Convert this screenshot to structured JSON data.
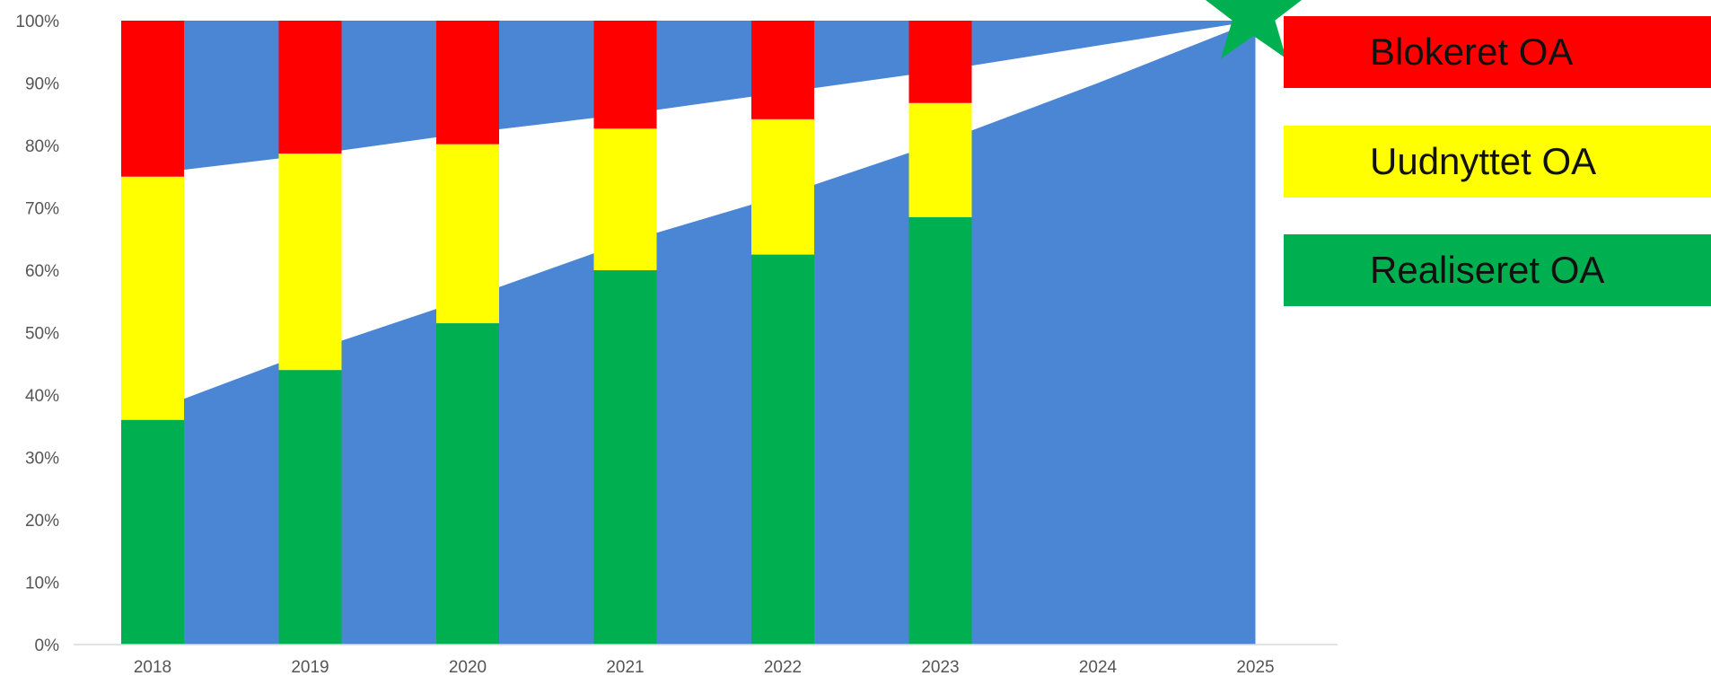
{
  "chart_data": {
    "type": "bar",
    "stacked": true,
    "categories": [
      "2018",
      "2019",
      "2020",
      "2021",
      "2022",
      "2023",
      "2024",
      "2025"
    ],
    "yticks": [
      "0%",
      "10%",
      "20%",
      "30%",
      "40%",
      "50%",
      "60%",
      "70%",
      "80%",
      "90%",
      "100%"
    ],
    "ylim": [
      0,
      100
    ],
    "series": [
      {
        "name": "Realiseret OA",
        "color": "#00b050",
        "values": [
          36,
          44,
          51.5,
          60,
          62.5,
          68.5,
          null,
          null
        ]
      },
      {
        "name": "Uudnyttet OA",
        "color": "#ffff00",
        "values": [
          39,
          34.7,
          28.7,
          22.7,
          21.7,
          18.3,
          null,
          null
        ]
      },
      {
        "name": "Blokeret OA",
        "color": "#ff0000",
        "values": [
          25,
          21.3,
          19.8,
          17.3,
          15.8,
          13.2,
          null,
          null
        ]
      }
    ],
    "trend_area": {
      "color": "#4a86d4",
      "upper_boundary": [
        75.5,
        78.5,
        82,
        85,
        88.5,
        92,
        96,
        100
      ],
      "lower_boundary": [
        37.5,
        47,
        55.5,
        64.5,
        72,
        80.5,
        90,
        100
      ]
    },
    "target_marker": {
      "category": "2025",
      "value": 100,
      "shape": "star",
      "color": "#00b050"
    },
    "grid": false,
    "legend_position": "right"
  }
}
